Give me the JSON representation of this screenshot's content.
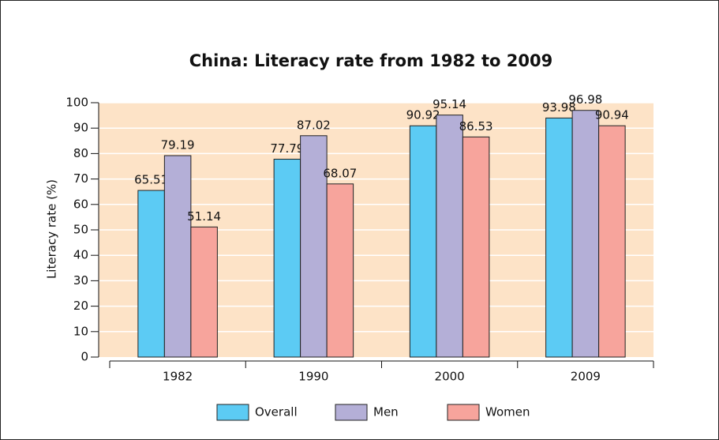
{
  "chart_data": {
    "type": "bar",
    "title": "China: Literacy rate from 1982 to 2009",
    "y_label": "Literacy rate (%)",
    "categories": [
      "1982",
      "1990",
      "2000",
      "2009"
    ],
    "series": [
      {
        "name": "Overall",
        "color": "#5ccbf4",
        "values": [
          65.51,
          77.79,
          90.92,
          93.98
        ]
      },
      {
        "name": "Men",
        "color": "#b4afd7",
        "values": [
          79.19,
          87.02,
          95.14,
          96.98
        ]
      },
      {
        "name": "Women",
        "color": "#f7a49c",
        "values": [
          51.14,
          68.07,
          86.53,
          90.94
        ]
      }
    ],
    "ylim": [
      0,
      100
    ],
    "yticks": [
      0,
      10,
      20,
      30,
      40,
      50,
      60,
      70,
      80,
      90,
      100
    ],
    "grid": true,
    "legend": "bottom",
    "plot_background": "#fde3c7"
  }
}
